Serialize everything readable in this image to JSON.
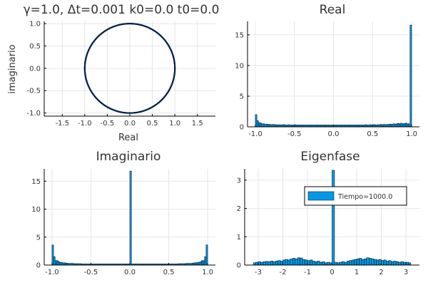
{
  "chart_data": [
    {
      "id": "circle",
      "type": "scatter",
      "title": "γ=1.0,   Δt=0.001 k0=0.0 t0=0.0",
      "xlabel": "Real",
      "ylabel": "imaginario",
      "xlim": [
        -1.9,
        1.9
      ],
      "ylim": [
        -1.07,
        1.05
      ],
      "xticks": [
        -1.5,
        -1.0,
        -0.5,
        0.0,
        0.5,
        1.0,
        1.5
      ],
      "xtick_labels": [
        "-1.5",
        "-1.0",
        "-0.5",
        "0.0",
        "0.5",
        "1.0",
        "1.5"
      ],
      "yticks": [
        -1.0,
        -0.5,
        0.0,
        0.5,
        1.0
      ],
      "ytick_labels": [
        "-1.0",
        "-0.5",
        "0.0",
        "0.5",
        "1.0"
      ],
      "shape": "unit circle",
      "radius": 1.0,
      "point_color": "#00224d",
      "grid": true
    },
    {
      "id": "real",
      "type": "bar",
      "title": "Real",
      "xlabel": "",
      "ylabel": "",
      "xlim": [
        -1.1,
        1.1
      ],
      "ylim": [
        0,
        17.2
      ],
      "xticks": [
        -1.0,
        -0.5,
        0.0,
        0.5,
        1.0
      ],
      "xtick_labels": [
        "-1.0",
        "-0.5",
        "0.0",
        "0.5",
        "1.0"
      ],
      "yticks": [
        0,
        5,
        10,
        15
      ],
      "ytick_labels": [
        "0",
        "5",
        "10",
        "15"
      ],
      "bin_start": -1.0,
      "bin_width": 0.02,
      "values": [
        2.0,
        1.0,
        0.7,
        0.6,
        0.5,
        0.5,
        0.4,
        0.45,
        0.4,
        0.4,
        0.35,
        0.4,
        0.35,
        0.35,
        0.3,
        0.35,
        0.3,
        0.35,
        0.35,
        0.3,
        0.3,
        0.35,
        0.3,
        0.3,
        0.3,
        0.35,
        0.3,
        0.3,
        0.3,
        0.3,
        0.3,
        0.3,
        0.3,
        0.3,
        0.3,
        0.3,
        0.3,
        0.3,
        0.3,
        0.3,
        0.3,
        0.3,
        0.3,
        0.3,
        0.3,
        0.3,
        0.3,
        0.3,
        0.3,
        0.3,
        0.3,
        0.3,
        0.3,
        0.3,
        0.3,
        0.3,
        0.3,
        0.3,
        0.3,
        0.3,
        0.3,
        0.3,
        0.3,
        0.3,
        0.3,
        0.3,
        0.3,
        0.3,
        0.3,
        0.3,
        0.35,
        0.3,
        0.3,
        0.35,
        0.3,
        0.35,
        0.35,
        0.3,
        0.35,
        0.35,
        0.4,
        0.35,
        0.4,
        0.35,
        0.4,
        0.4,
        0.45,
        0.4,
        0.5,
        0.45,
        0.5,
        0.55,
        0.5,
        0.6,
        0.5,
        0.55,
        0.6,
        0.5,
        0.5,
        16.6
      ],
      "grid": true
    },
    {
      "id": "imag",
      "type": "bar",
      "title": "Imaginario",
      "xlabel": "",
      "ylabel": "",
      "xlim": [
        -1.1,
        1.1
      ],
      "ylim": [
        0,
        17.2
      ],
      "xticks": [
        -1.0,
        -0.5,
        0.0,
        0.5,
        1.0
      ],
      "xtick_labels": [
        "-1.0",
        "-0.5",
        "0.0",
        "0.5",
        "1.0"
      ],
      "yticks": [
        0,
        5,
        10,
        15
      ],
      "ytick_labels": [
        "0",
        "5",
        "10",
        "15"
      ],
      "bin_start": -1.0,
      "bin_width": 0.02,
      "values": [
        3.6,
        1.5,
        0.8,
        0.8,
        0.6,
        0.5,
        0.45,
        0.4,
        0.4,
        0.35,
        0.3,
        0.3,
        0.3,
        0.3,
        0.25,
        0.25,
        0.25,
        0.25,
        0.25,
        0.2,
        0.2,
        0.2,
        0.2,
        0.2,
        0.2,
        0.2,
        0.2,
        0.2,
        0.2,
        0.2,
        0.2,
        0.2,
        0.2,
        0.2,
        0.2,
        0.2,
        0.2,
        0.2,
        0.2,
        0.2,
        0.2,
        0.2,
        0.2,
        0.2,
        0.2,
        0.2,
        0.2,
        0.2,
        0.2,
        0.2,
        16.8,
        0.2,
        0.2,
        0.2,
        0.2,
        0.2,
        0.2,
        0.2,
        0.2,
        0.2,
        0.2,
        0.2,
        0.2,
        0.2,
        0.2,
        0.2,
        0.2,
        0.2,
        0.2,
        0.2,
        0.2,
        0.2,
        0.2,
        0.2,
        0.2,
        0.2,
        0.2,
        0.2,
        0.2,
        0.2,
        0.2,
        0.25,
        0.25,
        0.25,
        0.25,
        0.25,
        0.3,
        0.3,
        0.3,
        0.3,
        0.35,
        0.4,
        0.4,
        0.45,
        0.5,
        0.6,
        0.8,
        0.8,
        1.5,
        3.6
      ],
      "grid": true
    },
    {
      "id": "eigen",
      "type": "bar",
      "title": "Eigenfase",
      "xlabel": "",
      "ylabel": "",
      "xlim": [
        -3.55,
        3.55
      ],
      "ylim": [
        0,
        3.4
      ],
      "xticks": [
        -3,
        -2,
        -1,
        0,
        1,
        2,
        3
      ],
      "xtick_labels": [
        "-3",
        "-2",
        "-1",
        "0",
        "1",
        "2",
        "3"
      ],
      "yticks": [
        0,
        1,
        2,
        3
      ],
      "ytick_labels": [
        "0",
        "1",
        "2",
        "3"
      ],
      "bin_start": -3.2,
      "bin_width": 0.1,
      "values": [
        0.08,
        0.1,
        0.12,
        0.1,
        0.12,
        0.13,
        0.12,
        0.14,
        0.12,
        0.14,
        0.16,
        0.14,
        0.18,
        0.2,
        0.18,
        0.22,
        0.24,
        0.22,
        0.26,
        0.25,
        0.2,
        0.18,
        0.16,
        0.18,
        0.14,
        0.12,
        0.14,
        0.1,
        0.12,
        0.08,
        0.1,
        0.08,
        3.35,
        0.1,
        0.08,
        0.1,
        0.12,
        0.1,
        0.14,
        0.16,
        0.18,
        0.2,
        0.22,
        0.24,
        0.2,
        0.22,
        0.26,
        0.24,
        0.22,
        0.2,
        0.18,
        0.2,
        0.16,
        0.18,
        0.14,
        0.16,
        0.12,
        0.14,
        0.12,
        0.1,
        0.12,
        0.1,
        0.1,
        0.08
      ],
      "legend": {
        "label": "Tiempo=1000.0",
        "position": "top-right"
      },
      "grid": true
    }
  ],
  "colors": {
    "bar": "#0099e6",
    "edge": "#000000",
    "text": "#333333"
  }
}
